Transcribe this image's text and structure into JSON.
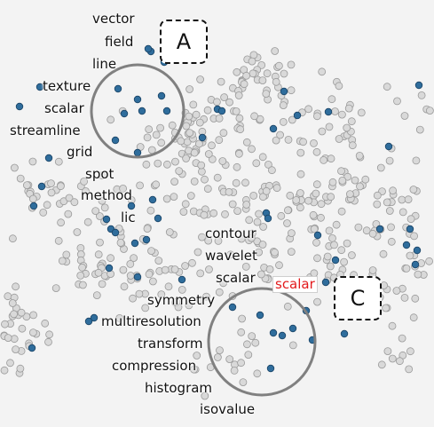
{
  "callouts": [
    {
      "id": "a",
      "label": "A"
    },
    {
      "id": "c",
      "label": "C"
    }
  ],
  "keywords": {
    "vector": "vector",
    "field": "field",
    "line": "line",
    "texture": "texture",
    "scalar_a": "scalar",
    "streamline": "streamline",
    "grid": "grid",
    "spot": "spot",
    "method": "method",
    "lic": "lic",
    "contour": "contour",
    "wavelet": "wavelet",
    "scalar_c": "scalar",
    "scalar_highlight": "scalar",
    "symmetry": "symmetry",
    "multiresolution": "multiresolution",
    "transform": "transform",
    "compression": "compression",
    "histogram": "histogram",
    "isovalue": "isovalue"
  },
  "colors": {
    "background": "#f3f3f3",
    "point_gray": "#d9d9d9",
    "point_gray_stroke": "#9a9a9a",
    "point_blue": "#2f6d9c",
    "point_blue_stroke": "#1b4466",
    "lens": "#808080",
    "highlight_text": "#e31a1c"
  }
}
